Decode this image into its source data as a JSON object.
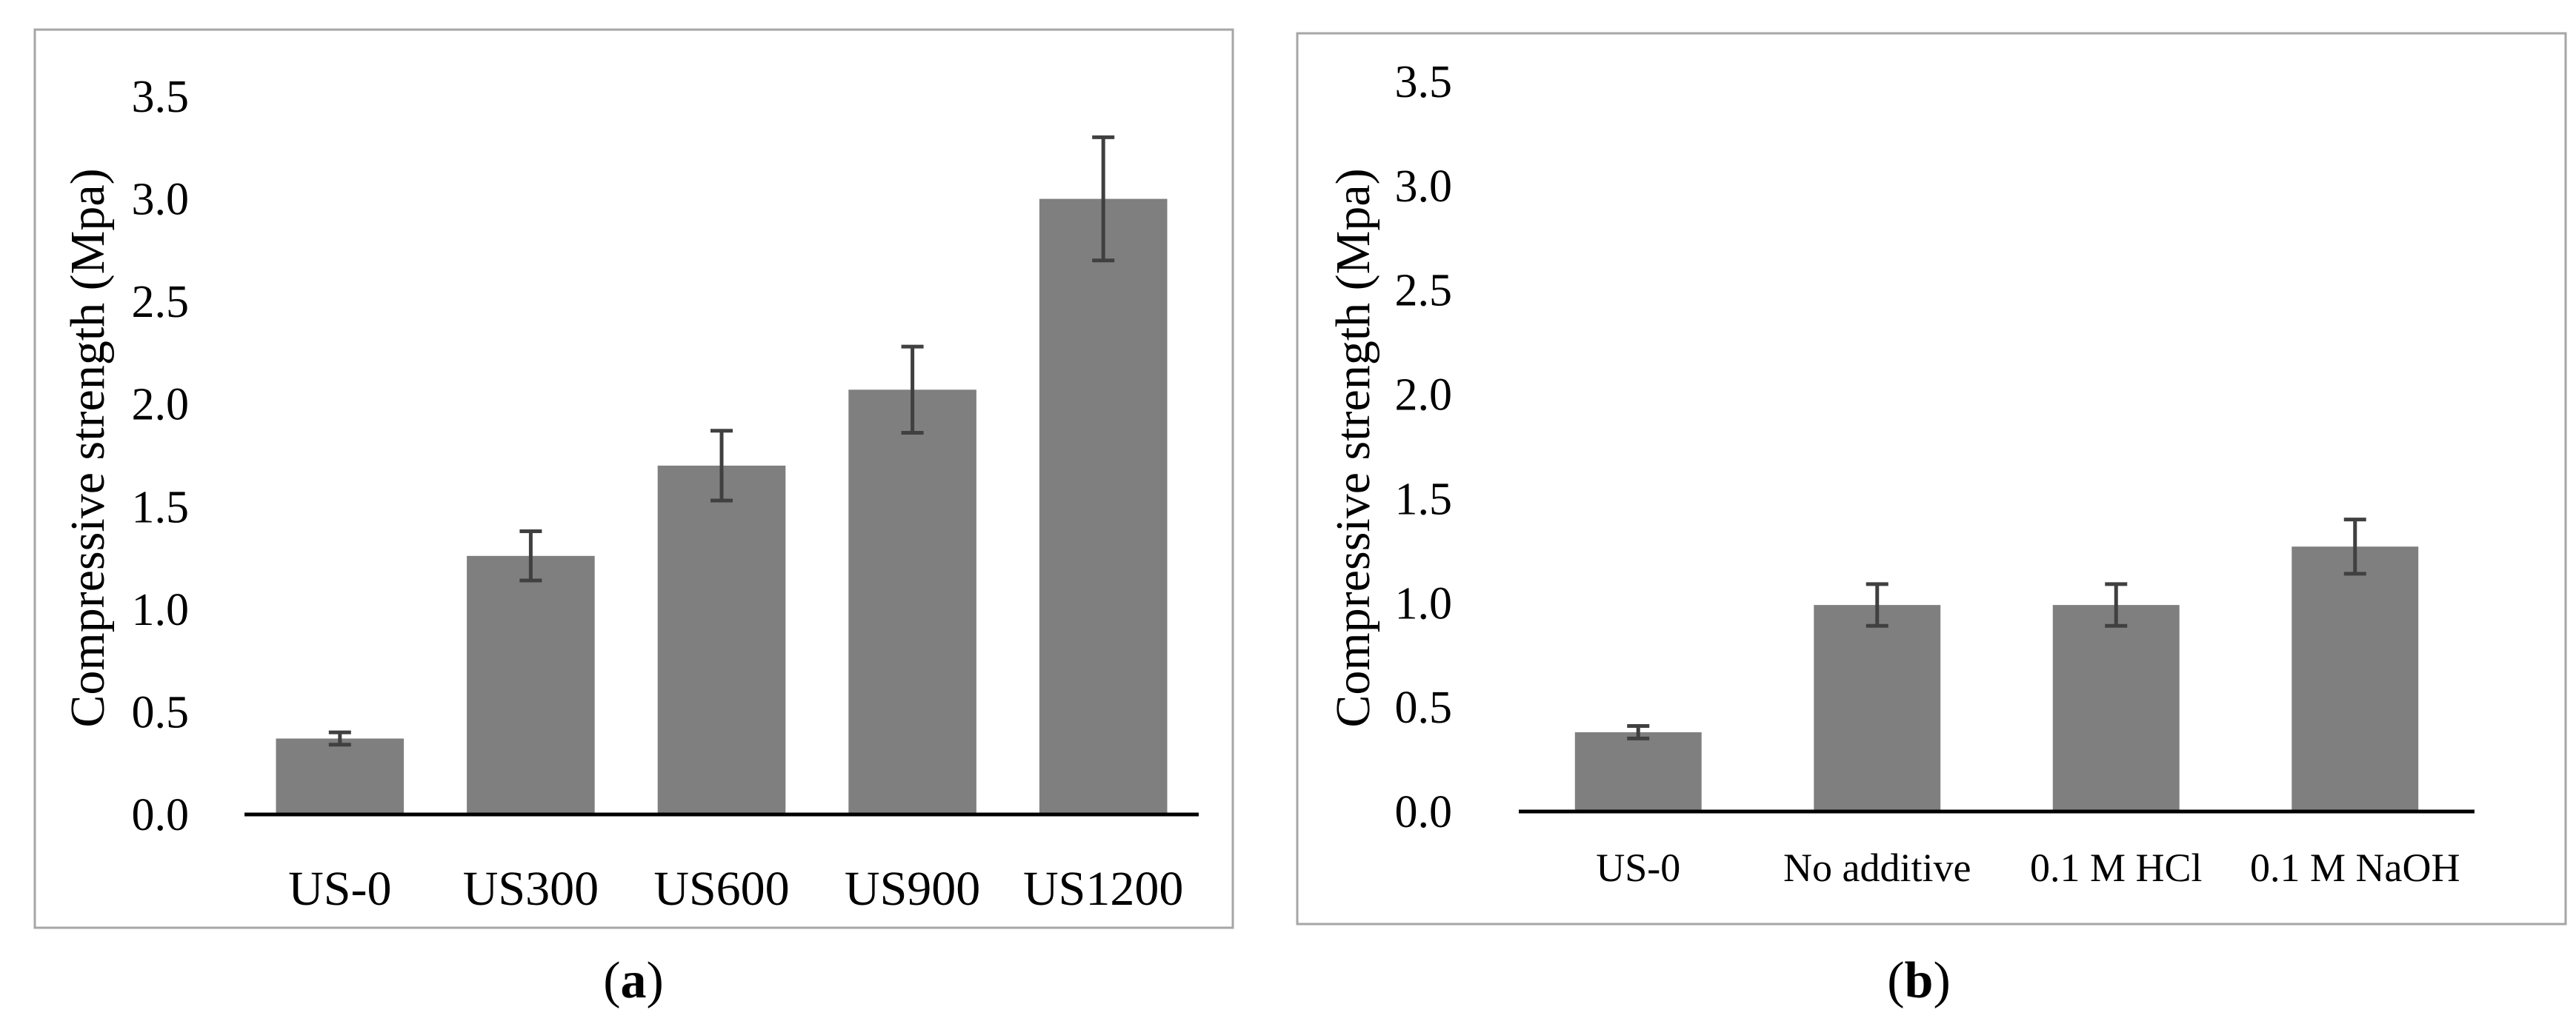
{
  "colors": {
    "bar": "#7f7f7f",
    "error_bar": "#404040",
    "axis": "#000000",
    "frame": "#a6a6a6"
  },
  "panels": [
    {
      "caption_open": "(",
      "caption_letter": "a",
      "caption_close": ")"
    },
    {
      "caption_open": "(",
      "caption_letter": "b",
      "caption_close": ")"
    }
  ],
  "chart_data": [
    {
      "type": "bar",
      "ylabel": "Compressive strength (Mpa)",
      "xlabel": "",
      "ylim": [
        0,
        3.5
      ],
      "yticks": [
        "0.0",
        "0.5",
        "1.0",
        "1.5",
        "2.0",
        "2.5",
        "3.0",
        "3.5"
      ],
      "categories": [
        "US-0",
        "US300",
        "US600",
        "US900",
        "US1200"
      ],
      "values": [
        0.37,
        1.26,
        1.7,
        2.07,
        3.0
      ],
      "errors": [
        0.03,
        0.12,
        0.17,
        0.21,
        0.3
      ],
      "grid": false,
      "legend": "none"
    },
    {
      "type": "bar",
      "ylabel": "Compressive strength (Mpa)",
      "xlabel": "",
      "ylim": [
        0,
        3.5
      ],
      "yticks": [
        "0.0",
        "0.5",
        "1.0",
        "1.5",
        "2.0",
        "2.5",
        "3.0",
        "3.5"
      ],
      "categories": [
        "US-0",
        "No additive",
        "0.1 M HCl",
        "0.1 M NaOH"
      ],
      "values": [
        0.38,
        0.99,
        0.99,
        1.27
      ],
      "errors": [
        0.03,
        0.1,
        0.1,
        0.13
      ],
      "grid": false,
      "legend": "none"
    }
  ]
}
